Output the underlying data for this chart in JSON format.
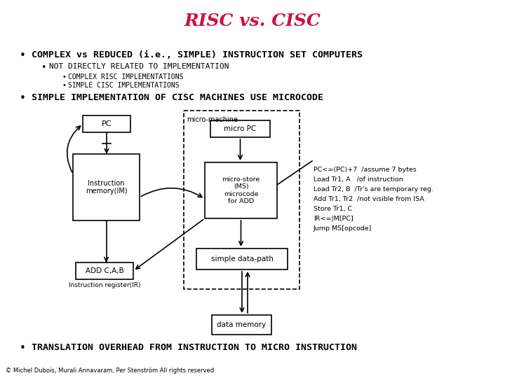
{
  "title": "RISC vs. CISC",
  "title_color": "#CC1144",
  "bg_color": "#FFFFFF",
  "bullet1": "COMPLEX vs REDUCED (i.e., SIMPLE) INSTRUCTION SET COMPUTERS",
  "bullet1a": "NOT DIRECTLY RELATED TO IMPLEMENTATION",
  "bullet1a1": "COMPLEX RISC IMPLEMENTATIONS",
  "bullet1a2": "SIMPLE CISC IMPLEMENTATIONS",
  "bullet2": "SIMPLE IMPLEMENTATION OF CISC MACHINES USE MICROCODE",
  "bullet3": "TRANSLATION OVERHEAD FROM INSTRUCTION TO MICRO INSTRUCTION",
  "footer": "© Michel Dubois, Murali Annavaram, Per Stenström All rights reserved",
  "code_lines": [
    "PC<=(PC)+7  /assume 7 bytes",
    "Load Tr1, A   /of instruction",
    "Load Tr2, B  /Tr's are temporary reg.",
    "Add Tr1, Tr2  /not visible from ISA",
    "Store Tr1, C",
    "IR<=|M[PC]",
    "Jump MS[opcode]"
  ]
}
